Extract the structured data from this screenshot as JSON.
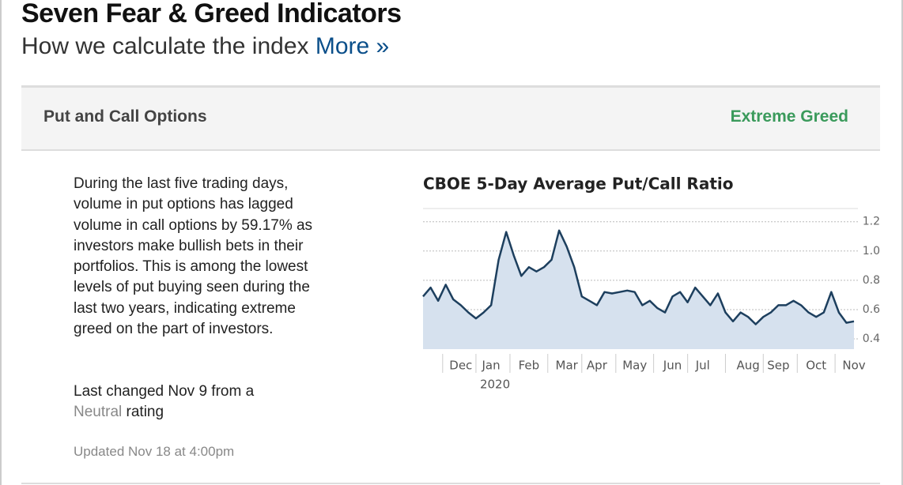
{
  "header": {
    "title": "Seven Fear & Greed Indicators",
    "subtitle": "How we calculate the index",
    "link": "More »"
  },
  "panel": {
    "name": "Put and Call Options",
    "rating": "Extreme Greed",
    "description": "During the last five trading days, volume in put options has lagged volume in call options by 59.17% as investors make bullish bets in their portfolios. This is among the lowest levels of put buying seen during the last two years, indicating extreme greed on the part of investors.",
    "last_changed": "Last changed Nov 9 from a",
    "previous_rating": "Neutral",
    "rating_suffix": "rating",
    "updated": "Updated Nov 18 at 4:00pm"
  },
  "chart_data": {
    "type": "area",
    "title": "CBOE 5-Day Average Put/Call Ratio",
    "categories": [
      null,
      null,
      null,
      null,
      null,
      "Dec",
      null,
      null,
      null,
      "Jan",
      null,
      null,
      null,
      null,
      "Feb",
      null,
      null,
      null,
      null,
      "Mar",
      null,
      null,
      null,
      "Apr",
      null,
      null,
      null,
      null,
      "May",
      null,
      null,
      null,
      null,
      "Jun",
      null,
      null,
      null,
      "Jul",
      null,
      null,
      null,
      null,
      null,
      "Aug",
      null,
      null,
      null,
      "Sep",
      null,
      null,
      null,
      null,
      "Oct",
      null,
      null,
      null,
      null,
      "Nov"
    ],
    "year_label": "2020",
    "values": [
      0.69,
      0.75,
      0.66,
      0.77,
      0.67,
      0.63,
      0.58,
      0.54,
      0.58,
      0.63,
      0.94,
      1.13,
      0.97,
      0.83,
      0.89,
      0.86,
      0.89,
      0.94,
      1.14,
      1.03,
      0.89,
      0.69,
      0.66,
      0.63,
      0.72,
      0.71,
      0.72,
      0.73,
      0.72,
      0.63,
      0.66,
      0.61,
      0.58,
      0.69,
      0.72,
      0.65,
      0.75,
      0.69,
      0.63,
      0.71,
      0.58,
      0.52,
      0.58,
      0.55,
      0.5,
      0.55,
      0.58,
      0.63,
      0.63,
      0.66,
      0.63,
      0.58,
      0.55,
      0.58,
      0.72,
      0.58,
      0.51,
      0.52
    ],
    "color": "#1d3f5e",
    "fill": "#d6e1ee",
    "ylim": [
      0.33,
      1.29
    ],
    "yticks": [
      0.4,
      0.6,
      0.8,
      {
        "value": 1,
        "label": "1.0"
      },
      1.2
    ],
    "grid": true
  }
}
